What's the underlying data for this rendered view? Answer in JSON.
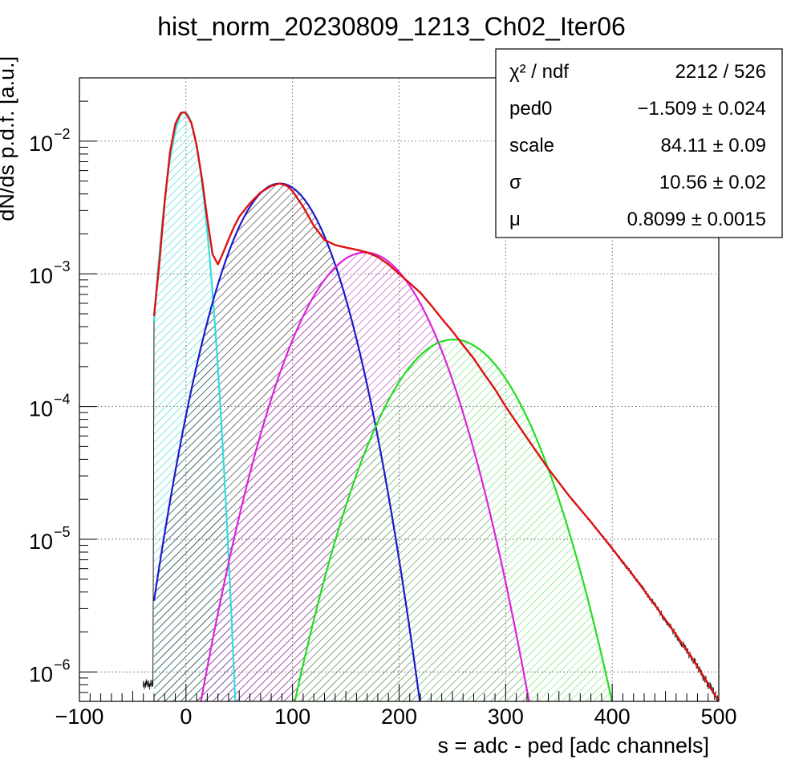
{
  "chart_data": {
    "type": "line",
    "title": "hist_norm_20230809_1213_Ch02_Iter06",
    "xlabel": "s = adc - ped [adc channels]",
    "ylabel": "dN/ds p.d.f. [a.u.]",
    "xlim": [
      -100,
      500
    ],
    "ylim": [
      6e-07,
      0.03
    ],
    "yscale": "log",
    "grid": true,
    "x_ticks": [
      {
        "value": -100,
        "label": "−100"
      },
      {
        "value": 0,
        "label": "0"
      },
      {
        "value": 100,
        "label": "100"
      },
      {
        "value": 200,
        "label": "200"
      },
      {
        "value": 300,
        "label": "300"
      },
      {
        "value": 400,
        "label": "400"
      },
      {
        "value": 500,
        "label": "500"
      }
    ],
    "y_ticks": [
      {
        "value": 0.01,
        "base": "10",
        "exp": "−2"
      },
      {
        "value": 0.001,
        "base": "10",
        "exp": "−3"
      },
      {
        "value": 0.0001,
        "base": "10",
        "exp": "−4"
      },
      {
        "value": 1e-05,
        "base": "10",
        "exp": "−5"
      },
      {
        "value": 1e-06,
        "base": "10",
        "exp": "−6"
      }
    ],
    "stats_box": {
      "position": "top-right",
      "rows": [
        {
          "label": "χ² / ndf",
          "value": "2212 / 526"
        },
        {
          "label": "ped0",
          "value": "−1.509 ± 0.024"
        },
        {
          "label": "scale",
          "value": "84.11 ± 0.09"
        },
        {
          "label": "σ",
          "value": "10.56 ± 0.02"
        },
        {
          "label": "μ",
          "value": "0.8099 ± 0.0015"
        }
      ]
    },
    "components": [
      {
        "color": "#33dddd",
        "peak_x": -1.5,
        "peak_y": 0.0165,
        "sigma": 10.56,
        "hatch": "cyan"
      },
      {
        "color": "#1a1acc",
        "peak_x": 88,
        "peak_y": 0.0048,
        "sigma": 31,
        "hatch": "dark"
      },
      {
        "color": "#dd22dd",
        "peak_x": 168,
        "peak_y": 0.00145,
        "sigma": 39,
        "hatch": "magenta"
      },
      {
        "color": "#22dd22",
        "peak_x": 251,
        "peak_y": 0.00032,
        "sigma": 42,
        "hatch": "green"
      }
    ],
    "fit_color": "#dd1111",
    "histogram_color": "#000000",
    "series": [
      {
        "x": [
          -30,
          -25,
          -20,
          -15,
          -10,
          -5,
          -2,
          0,
          5,
          10,
          15,
          20,
          25,
          30,
          35,
          40,
          45,
          50,
          60,
          70,
          80,
          88,
          95,
          100,
          110,
          120,
          130,
          140,
          150,
          160,
          170,
          180,
          190,
          200,
          210,
          220,
          230,
          240,
          250,
          260,
          270,
          280,
          290,
          300,
          320,
          340,
          360,
          380,
          400,
          420,
          440,
          460,
          480,
          500
        ],
        "values": [
          0.00048,
          0.0012,
          0.0035,
          0.0082,
          0.0135,
          0.0163,
          0.0165,
          0.0162,
          0.0138,
          0.0093,
          0.0052,
          0.0026,
          0.0014,
          0.00118,
          0.00145,
          0.00182,
          0.00225,
          0.0027,
          0.0034,
          0.0041,
          0.0046,
          0.0048,
          0.0046,
          0.0042,
          0.0032,
          0.0023,
          0.0018,
          0.00165,
          0.00158,
          0.00152,
          0.00145,
          0.00134,
          0.00118,
          0.001,
          0.00085,
          0.00072,
          0.00058,
          0.00046,
          0.00037,
          0.00029,
          0.00023,
          0.000175,
          0.000135,
          0.0001,
          5.8e-05,
          3.4e-05,
          2.1e-05,
          1.35e-05,
          8.5e-06,
          5.3e-06,
          3.2e-06,
          1.9e-06,
          1.1e-06,
          6e-07
        ]
      }
    ]
  }
}
